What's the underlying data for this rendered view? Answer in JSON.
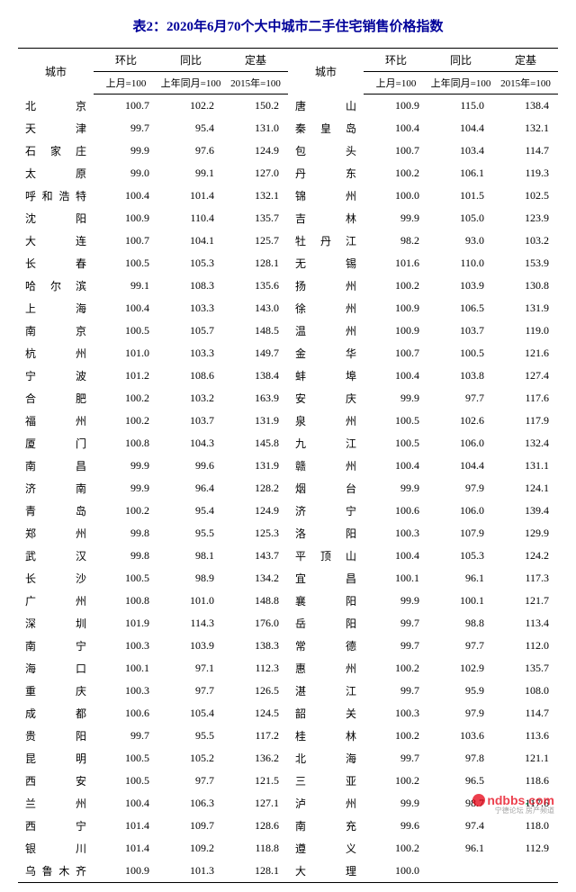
{
  "title": "表2：2020年6月70个大中城市二手住宅销售价格指数",
  "headers": {
    "city": "城市",
    "mom": "环比",
    "yoy": "同比",
    "fixed": "定基",
    "mom_sub": "上月=100",
    "yoy_sub": "上年同月=100",
    "fixed_sub": "2015年=100"
  },
  "left": [
    {
      "c": "北　京",
      "m": "100.7",
      "y": "102.2",
      "f": "150.2"
    },
    {
      "c": "天　津",
      "m": "99.7",
      "y": "95.4",
      "f": "131.0"
    },
    {
      "c": "石家庄",
      "m": "99.9",
      "y": "97.6",
      "f": "124.9"
    },
    {
      "c": "太　原",
      "m": "99.0",
      "y": "99.1",
      "f": "127.0"
    },
    {
      "c": "呼和浩特",
      "m": "100.4",
      "y": "101.4",
      "f": "132.1"
    },
    {
      "c": "沈　阳",
      "m": "100.9",
      "y": "110.4",
      "f": "135.7"
    },
    {
      "c": "大　连",
      "m": "100.7",
      "y": "104.1",
      "f": "125.7"
    },
    {
      "c": "长　春",
      "m": "100.5",
      "y": "105.3",
      "f": "128.1"
    },
    {
      "c": "哈尔滨",
      "m": "99.1",
      "y": "108.3",
      "f": "135.6"
    },
    {
      "c": "上　海",
      "m": "100.4",
      "y": "103.3",
      "f": "143.0"
    },
    {
      "c": "南　京",
      "m": "100.5",
      "y": "105.7",
      "f": "148.5"
    },
    {
      "c": "杭　州",
      "m": "101.0",
      "y": "103.3",
      "f": "149.7"
    },
    {
      "c": "宁　波",
      "m": "101.2",
      "y": "108.6",
      "f": "138.4"
    },
    {
      "c": "合　肥",
      "m": "100.2",
      "y": "103.2",
      "f": "163.9"
    },
    {
      "c": "福　州",
      "m": "100.2",
      "y": "103.7",
      "f": "131.9"
    },
    {
      "c": "厦　门",
      "m": "100.8",
      "y": "104.3",
      "f": "145.8"
    },
    {
      "c": "南　昌",
      "m": "99.9",
      "y": "99.6",
      "f": "131.9"
    },
    {
      "c": "济　南",
      "m": "99.9",
      "y": "96.4",
      "f": "128.2"
    },
    {
      "c": "青　岛",
      "m": "100.2",
      "y": "95.4",
      "f": "124.9"
    },
    {
      "c": "郑　州",
      "m": "99.8",
      "y": "95.5",
      "f": "125.3"
    },
    {
      "c": "武　汉",
      "m": "99.8",
      "y": "98.1",
      "f": "143.7"
    },
    {
      "c": "长　沙",
      "m": "100.5",
      "y": "98.9",
      "f": "134.2"
    },
    {
      "c": "广　州",
      "m": "100.8",
      "y": "101.0",
      "f": "148.8"
    },
    {
      "c": "深　圳",
      "m": "101.9",
      "y": "114.3",
      "f": "176.0"
    },
    {
      "c": "南　宁",
      "m": "100.3",
      "y": "103.9",
      "f": "138.3"
    },
    {
      "c": "海　口",
      "m": "100.1",
      "y": "97.1",
      "f": "112.3"
    },
    {
      "c": "重　庆",
      "m": "100.3",
      "y": "97.7",
      "f": "126.5"
    },
    {
      "c": "成　都",
      "m": "100.6",
      "y": "105.4",
      "f": "124.5"
    },
    {
      "c": "贵　阳",
      "m": "99.7",
      "y": "95.5",
      "f": "117.2"
    },
    {
      "c": "昆　明",
      "m": "100.5",
      "y": "105.2",
      "f": "136.2"
    },
    {
      "c": "西　安",
      "m": "100.5",
      "y": "97.7",
      "f": "121.5"
    },
    {
      "c": "兰　州",
      "m": "100.4",
      "y": "106.3",
      "f": "127.1"
    },
    {
      "c": "西　宁",
      "m": "101.4",
      "y": "109.7",
      "f": "128.6"
    },
    {
      "c": "银　川",
      "m": "101.4",
      "y": "109.2",
      "f": "118.8"
    },
    {
      "c": "乌鲁木齐",
      "m": "100.9",
      "y": "101.3",
      "f": "128.1"
    }
  ],
  "right": [
    {
      "c": "唐　山",
      "m": "100.9",
      "y": "115.0",
      "f": "138.4"
    },
    {
      "c": "秦皇岛",
      "m": "100.4",
      "y": "104.4",
      "f": "132.1"
    },
    {
      "c": "包　头",
      "m": "100.7",
      "y": "103.4",
      "f": "114.7"
    },
    {
      "c": "丹　东",
      "m": "100.2",
      "y": "106.1",
      "f": "119.3"
    },
    {
      "c": "锦　州",
      "m": "100.0",
      "y": "101.5",
      "f": "102.5"
    },
    {
      "c": "吉　林",
      "m": "99.9",
      "y": "105.0",
      "f": "123.9"
    },
    {
      "c": "牡丹江",
      "m": "98.2",
      "y": "93.0",
      "f": "103.2"
    },
    {
      "c": "无　锡",
      "m": "101.6",
      "y": "110.0",
      "f": "153.9"
    },
    {
      "c": "扬　州",
      "m": "100.2",
      "y": "103.9",
      "f": "130.8"
    },
    {
      "c": "徐　州",
      "m": "100.9",
      "y": "106.5",
      "f": "131.9"
    },
    {
      "c": "温　州",
      "m": "100.9",
      "y": "103.7",
      "f": "119.0"
    },
    {
      "c": "金　华",
      "m": "100.7",
      "y": "100.5",
      "f": "121.6"
    },
    {
      "c": "蚌　埠",
      "m": "100.4",
      "y": "103.8",
      "f": "127.4"
    },
    {
      "c": "安　庆",
      "m": "99.9",
      "y": "97.7",
      "f": "117.6"
    },
    {
      "c": "泉　州",
      "m": "100.5",
      "y": "102.6",
      "f": "117.9"
    },
    {
      "c": "九　江",
      "m": "100.5",
      "y": "106.0",
      "f": "132.4"
    },
    {
      "c": "赣　州",
      "m": "100.4",
      "y": "104.4",
      "f": "131.1"
    },
    {
      "c": "烟　台",
      "m": "99.9",
      "y": "97.9",
      "f": "124.1"
    },
    {
      "c": "济　宁",
      "m": "100.6",
      "y": "106.0",
      "f": "139.4"
    },
    {
      "c": "洛　阳",
      "m": "100.3",
      "y": "107.9",
      "f": "129.9"
    },
    {
      "c": "平顶山",
      "m": "100.4",
      "y": "105.3",
      "f": "124.2"
    },
    {
      "c": "宜　昌",
      "m": "100.1",
      "y": "96.1",
      "f": "117.3"
    },
    {
      "c": "襄　阳",
      "m": "99.9",
      "y": "100.1",
      "f": "121.7"
    },
    {
      "c": "岳　阳",
      "m": "99.7",
      "y": "98.8",
      "f": "113.4"
    },
    {
      "c": "常　德",
      "m": "99.7",
      "y": "97.7",
      "f": "112.0"
    },
    {
      "c": "惠　州",
      "m": "100.2",
      "y": "102.9",
      "f": "135.7"
    },
    {
      "c": "湛　江",
      "m": "99.7",
      "y": "95.9",
      "f": "108.0"
    },
    {
      "c": "韶　关",
      "m": "100.3",
      "y": "97.9",
      "f": "114.7"
    },
    {
      "c": "桂　林",
      "m": "100.2",
      "y": "103.6",
      "f": "113.6"
    },
    {
      "c": "北　海",
      "m": "99.7",
      "y": "97.8",
      "f": "121.1"
    },
    {
      "c": "三　亚",
      "m": "100.2",
      "y": "96.5",
      "f": "118.6"
    },
    {
      "c": "泸　州",
      "m": "99.9",
      "y": "98.7",
      "f": "117.6"
    },
    {
      "c": "南　充",
      "m": "99.6",
      "y": "97.4",
      "f": "118.0"
    },
    {
      "c": "遵　义",
      "m": "100.2",
      "y": "96.1",
      "f": "112.9"
    },
    {
      "c": "大　理",
      "m": "100.0",
      "y": "",
      "f": ""
    }
  ],
  "watermark": {
    "brand_left": "ndbbs",
    "brand_right": "com",
    "sub": "宁德论坛 房产频道",
    "dot": "."
  },
  "colors": {
    "title": "#000099",
    "text": "#000000",
    "background": "#ffffff",
    "border": "#000000",
    "brand": "#e60012",
    "dot": "#009944"
  }
}
